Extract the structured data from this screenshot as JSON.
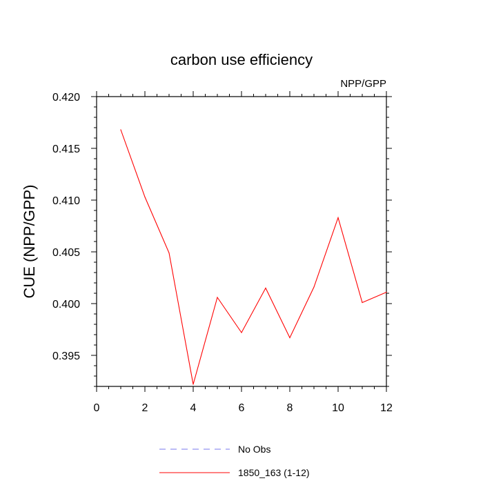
{
  "chart_data": {
    "type": "line",
    "title": "carbon use efficiency",
    "subtitle": "NPP/GPP",
    "xlabel": "",
    "ylabel": "CUE  (NPP/GPP)",
    "xlim": [
      0,
      12
    ],
    "ylim": [
      0.392,
      0.42
    ],
    "xticks": [
      "0",
      "2",
      "4",
      "6",
      "8",
      "10",
      "12"
    ],
    "yticks": [
      "0.395",
      "0.400",
      "0.405",
      "0.410",
      "0.415",
      "0.420"
    ],
    "grid": false,
    "legend_placement": "bottom",
    "series": [
      {
        "name": "No Obs",
        "color": "#7777ee",
        "dash": "dashed",
        "x": [],
        "y": []
      },
      {
        "name": "1850_163 (1-12)",
        "color": "#ff0000",
        "dash": "solid",
        "x": [
          1,
          2,
          3,
          4,
          5,
          6,
          7,
          8,
          9,
          10,
          11,
          12
        ],
        "y": [
          0.4168,
          0.4103,
          0.4049,
          0.3922,
          0.4006,
          0.3972,
          0.4015,
          0.3967,
          0.4016,
          0.4083,
          0.4001,
          0.4011
        ]
      }
    ]
  }
}
